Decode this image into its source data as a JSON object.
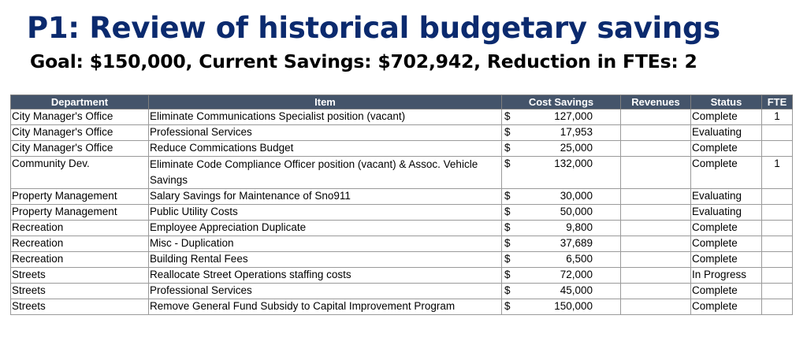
{
  "title": "P1: Review of historical budgetary savings",
  "subtitle": "Goal: $150,000, Current Savings: $702,942, Reduction in FTEs: 2",
  "colors": {
    "title": "#0b2a6e",
    "header_bg": "#44546a",
    "header_text": "#ffffff"
  },
  "table": {
    "headers": [
      "Department",
      "Item",
      "Cost Savings",
      "Revenues",
      "Status",
      "FTE"
    ],
    "currency_symbol": "$",
    "rows": [
      {
        "department": "City Manager's Office",
        "item": "Eliminate Communications Specialist position (vacant)",
        "cost": "127,000",
        "revenues": "",
        "status": "Complete",
        "fte": "1"
      },
      {
        "department": "City Manager's Office",
        "item": "Professional Services",
        "cost": "17,953",
        "revenues": "",
        "status": "Evaluating",
        "fte": ""
      },
      {
        "department": "City Manager's Office",
        "item": "Reduce Commications Budget",
        "cost": "25,000",
        "revenues": "",
        "status": "Complete",
        "fte": ""
      },
      {
        "department": "Community Dev.",
        "item": "Eliminate Code Compliance Officer position (vacant) & Assoc. Vehicle Savings",
        "cost": "132,000",
        "revenues": "",
        "status": "Complete",
        "fte": "1"
      },
      {
        "department": "Property Management",
        "item": "Salary Savings for Maintenance of Sno911",
        "cost": "30,000",
        "revenues": "",
        "status": "Evaluating",
        "fte": ""
      },
      {
        "department": "Property Management",
        "item": "Public Utility Costs",
        "cost": "50,000",
        "revenues": "",
        "status": "Evaluating",
        "fte": ""
      },
      {
        "department": "Recreation",
        "item": "Employee Appreciation Duplicate",
        "cost": "9,800",
        "revenues": "",
        "status": "Complete",
        "fte": ""
      },
      {
        "department": "Recreation",
        "item": "Misc - Duplication",
        "cost": "37,689",
        "revenues": "",
        "status": "Complete",
        "fte": ""
      },
      {
        "department": "Recreation",
        "item": "Building Rental Fees",
        "cost": "6,500",
        "revenues": "",
        "status": "Complete",
        "fte": ""
      },
      {
        "department": "Streets",
        "item": "Reallocate Street Operations staffing costs",
        "cost": "72,000",
        "revenues": "",
        "status": "In Progress",
        "fte": ""
      },
      {
        "department": "Streets",
        "item": "Professional Services",
        "cost": "45,000",
        "revenues": "",
        "status": "Complete",
        "fte": ""
      },
      {
        "department": "Streets",
        "item": "Remove General Fund Subsidy to Capital Improvement Program",
        "cost": "150,000",
        "revenues": "",
        "status": "Complete",
        "fte": ""
      }
    ]
  }
}
